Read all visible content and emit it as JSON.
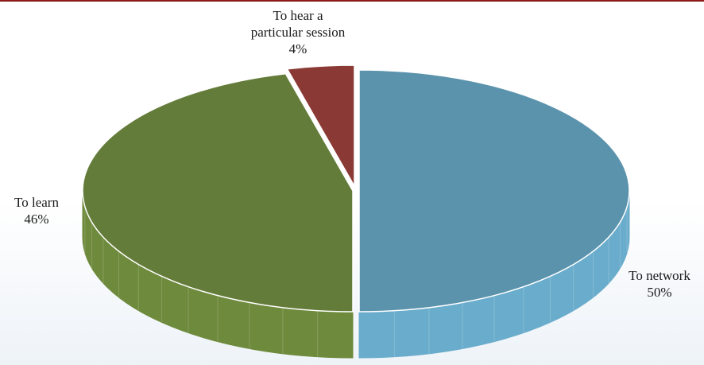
{
  "chart_data": {
    "type": "pie",
    "title": "",
    "categories": [
      "To network",
      "To learn",
      "To hear a particular session"
    ],
    "values": [
      50,
      46,
      4
    ],
    "unit": "%",
    "value_labels": [
      "50%",
      "46%",
      "4%"
    ],
    "label_lines": [
      [
        "To network"
      ],
      [
        "To learn"
      ],
      [
        "To hear a",
        "particular session"
      ]
    ],
    "colors": [
      "#5b93ad",
      "#647c3a",
      "#8b3934"
    ],
    "side_colors": [
      "#6aaccc",
      "#6e8a3c",
      "#7a2e2a"
    ],
    "legend": "none",
    "style": "3d-exploded"
  }
}
